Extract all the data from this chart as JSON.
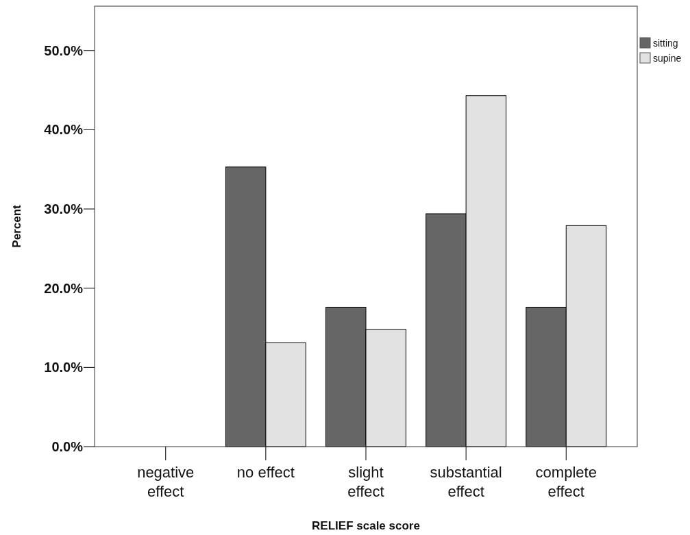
{
  "chart_data": {
    "type": "bar",
    "xlabel": "RELIEF scale score",
    "ylabel": "Percent",
    "categories": [
      "negative effect",
      "no effect",
      "slight effect",
      "substantial effect",
      "complete effect"
    ],
    "series": [
      {
        "name": "sitting",
        "color": "#666666",
        "values": [
          0,
          35.3,
          17.6,
          29.4,
          17.6
        ]
      },
      {
        "name": "supine",
        "color": "#e2e2e2",
        "values": [
          0,
          13.1,
          14.8,
          44.3,
          27.9
        ]
      }
    ],
    "ylim": [
      0,
      55.6
    ],
    "yticks": [
      {
        "value": 0,
        "label": "0.0%"
      },
      {
        "value": 10,
        "label": "10.0%"
      },
      {
        "value": 20,
        "label": "20.0%"
      },
      {
        "value": 30,
        "label": "30.0%"
      },
      {
        "value": 40,
        "label": "40.0%"
      },
      {
        "value": 50,
        "label": "50.0%"
      }
    ],
    "legend": "top right",
    "grid": false
  }
}
